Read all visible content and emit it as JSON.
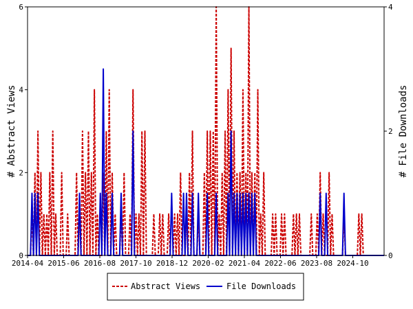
{
  "chart_data": {
    "type": "line",
    "x_tick_labels": [
      "2014-04",
      "2015-06",
      "2016-08",
      "2017-10",
      "2018-12",
      "2020-02",
      "2021-04",
      "2022-06",
      "2023-08",
      "2024-10"
    ],
    "y_left": {
      "label": "# Abstract Views",
      "ticks": [
        "0",
        "2",
        "4",
        "6"
      ],
      "range": [
        0,
        6
      ]
    },
    "y_right": {
      "label": "# File Downloads",
      "ticks": [
        "0",
        "2",
        "4"
      ],
      "range": [
        0,
        4
      ]
    },
    "legend": {
      "placement": "bottom-center"
    },
    "series": [
      {
        "name": "Abstract Views",
        "axis": "left",
        "color": "#cc0000",
        "style": "dashed",
        "values": [
          0,
          1,
          2,
          3,
          2,
          1,
          1,
          2,
          3,
          1,
          0,
          2,
          0,
          1,
          0,
          0,
          2,
          1,
          3,
          2,
          3,
          2,
          4,
          1,
          0,
          2,
          3,
          4,
          2,
          1,
          0,
          1,
          2,
          0,
          1,
          4,
          1,
          1,
          3,
          3,
          0,
          0,
          1,
          0,
          1,
          1,
          0,
          1,
          0,
          1,
          1,
          2,
          0,
          1,
          2,
          3,
          0,
          1,
          0,
          2,
          3,
          3,
          3,
          6,
          1,
          2,
          3,
          4,
          5,
          3,
          2,
          2,
          4,
          2,
          6,
          2,
          2,
          4,
          1,
          2,
          0,
          0,
          1,
          1,
          0,
          1,
          1,
          0,
          0,
          1,
          1,
          1,
          0,
          0,
          0,
          1,
          0,
          1,
          2,
          1,
          0,
          2,
          1,
          0,
          0,
          0,
          1,
          0,
          0,
          0,
          0,
          1,
          1,
          0,
          0,
          0,
          0,
          0,
          0,
          0
        ]
      },
      {
        "name": "File Downloads",
        "axis": "right",
        "color": "#0000cc",
        "style": "solid",
        "values": [
          0,
          1,
          1,
          1,
          0,
          0,
          0,
          0,
          0,
          0,
          0,
          0,
          0,
          0,
          0,
          0,
          0,
          1,
          0,
          0,
          0,
          0,
          0,
          0,
          1,
          3,
          1,
          0,
          1,
          0,
          0,
          1,
          0,
          0,
          0,
          2,
          0,
          0,
          0,
          0,
          0,
          0,
          0,
          0,
          0,
          0,
          0,
          0,
          1,
          0,
          0,
          0,
          1,
          1,
          0,
          1,
          0,
          1,
          0,
          0,
          1,
          0,
          0,
          1,
          0,
          0,
          0,
          1,
          2,
          1,
          1,
          1,
          1,
          1,
          1,
          1,
          1,
          0,
          0,
          0,
          0,
          0,
          0,
          0,
          0,
          0,
          0,
          0,
          0,
          0,
          0,
          0,
          0,
          0,
          0,
          0,
          0,
          0,
          1,
          0,
          1,
          0,
          0,
          0,
          0,
          0,
          1,
          0,
          0,
          0,
          0,
          0,
          0,
          0,
          0,
          0,
          0,
          0,
          0,
          0
        ]
      }
    ]
  }
}
